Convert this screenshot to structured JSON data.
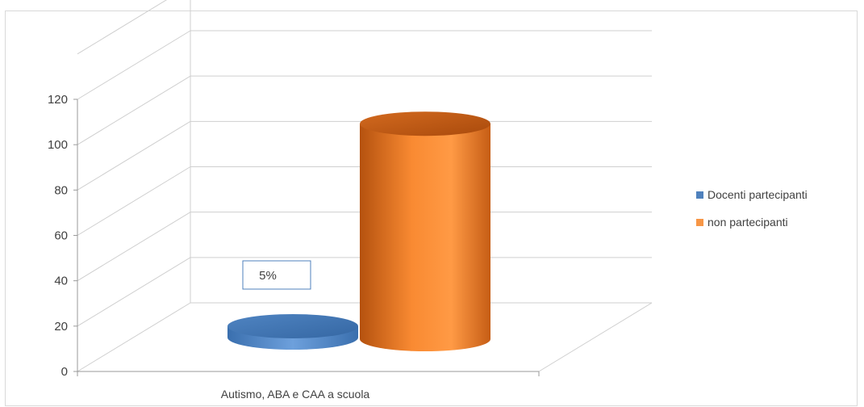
{
  "chart_data": {
    "type": "bar",
    "style": "3d-cylinder",
    "categories": [
      "Autismo, ABA e CAA a scuola"
    ],
    "series": [
      {
        "name": "Docenti partecipanti",
        "values": [
          5
        ],
        "color": "#4f81bd",
        "data_label": "5%"
      },
      {
        "name": "non partecipanti",
        "values": [
          95
        ],
        "color": "#f79646"
      }
    ],
    "yticks": [
      "0",
      "20",
      "40",
      "60",
      "80",
      "100",
      "120"
    ],
    "ylim": [
      0,
      140
    ],
    "grid": true,
    "legend": "right"
  }
}
